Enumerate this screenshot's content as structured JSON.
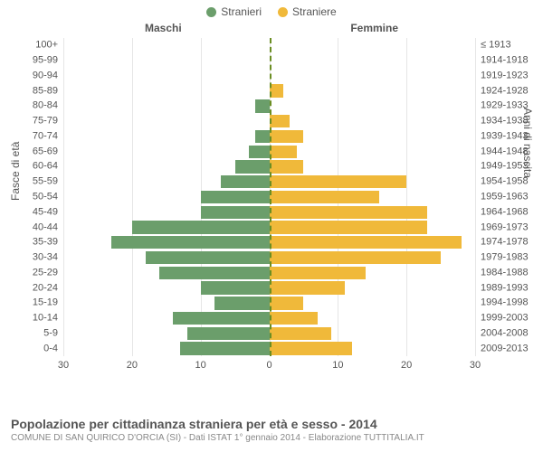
{
  "legend": {
    "male_label": "Stranieri",
    "female_label": "Straniere"
  },
  "headers": {
    "male": "Maschi",
    "female": "Femmine"
  },
  "axis": {
    "left_title": "Fasce di età",
    "right_title": "Anni di nascita"
  },
  "footer": {
    "title": "Popolazione per cittadinanza straniera per età e sesso - 2014",
    "subtitle": "COMUNE DI SAN QUIRICO D'ORCIA (SI) - Dati ISTAT 1° gennaio 2014 - Elaborazione TUTTITALIA.IT"
  },
  "chart": {
    "type": "population-pyramid",
    "xmax": 30,
    "xticks": [
      30,
      20,
      10,
      0,
      10,
      20,
      30
    ],
    "grid_color": "#e6e6e6",
    "center_line_color": "#6b8e23",
    "background_color": "#ffffff",
    "bar_gap_ratio": 0.14,
    "colors": {
      "male": "#6b9e6b",
      "female": "#f0b93a"
    },
    "rows": [
      {
        "age": "100+",
        "birth": "≤ 1913",
        "m": 0,
        "f": 0
      },
      {
        "age": "95-99",
        "birth": "1914-1918",
        "m": 0,
        "f": 0
      },
      {
        "age": "90-94",
        "birth": "1919-1923",
        "m": 0,
        "f": 0
      },
      {
        "age": "85-89",
        "birth": "1924-1928",
        "m": 0,
        "f": 2
      },
      {
        "age": "80-84",
        "birth": "1929-1933",
        "m": 2,
        "f": 0
      },
      {
        "age": "75-79",
        "birth": "1934-1938",
        "m": 0,
        "f": 3
      },
      {
        "age": "70-74",
        "birth": "1939-1943",
        "m": 2,
        "f": 5
      },
      {
        "age": "65-69",
        "birth": "1944-1948",
        "m": 3,
        "f": 4
      },
      {
        "age": "60-64",
        "birth": "1949-1953",
        "m": 5,
        "f": 5
      },
      {
        "age": "55-59",
        "birth": "1954-1958",
        "m": 7,
        "f": 20
      },
      {
        "age": "50-54",
        "birth": "1959-1963",
        "m": 10,
        "f": 16
      },
      {
        "age": "45-49",
        "birth": "1964-1968",
        "m": 10,
        "f": 23
      },
      {
        "age": "40-44",
        "birth": "1969-1973",
        "m": 20,
        "f": 23
      },
      {
        "age": "35-39",
        "birth": "1974-1978",
        "m": 23,
        "f": 28
      },
      {
        "age": "30-34",
        "birth": "1979-1983",
        "m": 18,
        "f": 25
      },
      {
        "age": "25-29",
        "birth": "1984-1988",
        "m": 16,
        "f": 14
      },
      {
        "age": "20-24",
        "birth": "1989-1993",
        "m": 10,
        "f": 11
      },
      {
        "age": "15-19",
        "birth": "1994-1998",
        "m": 8,
        "f": 5
      },
      {
        "age": "10-14",
        "birth": "1999-2003",
        "m": 14,
        "f": 7
      },
      {
        "age": "5-9",
        "birth": "2004-2008",
        "m": 12,
        "f": 9
      },
      {
        "age": "0-4",
        "birth": "2009-2013",
        "m": 13,
        "f": 12
      }
    ]
  }
}
